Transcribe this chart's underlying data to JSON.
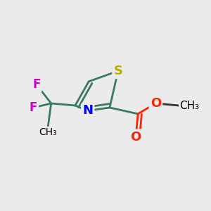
{
  "background_color": "#ebebeb",
  "figsize": [
    3.0,
    3.0
  ],
  "dpi": 100,
  "atoms": {
    "S": {
      "color": "#b8b000",
      "fontsize": 13,
      "label": "S"
    },
    "N": {
      "color": "#0000ff",
      "fontsize": 13,
      "label": "N"
    },
    "O1": {
      "color": "#ff2200",
      "fontsize": 13,
      "label": "O"
    },
    "O2": {
      "color": "#ff2200",
      "fontsize": 13,
      "label": "O"
    },
    "F1": {
      "color": "#cc00cc",
      "fontsize": 12,
      "label": "F"
    },
    "F2": {
      "color": "#cc00cc",
      "fontsize": 12,
      "label": "F"
    },
    "CH3": {
      "color": "#000000",
      "fontsize": 11,
      "label": "CH₃"
    }
  },
  "bond_color": "#3a7a60",
  "bond_width": 2.0
}
